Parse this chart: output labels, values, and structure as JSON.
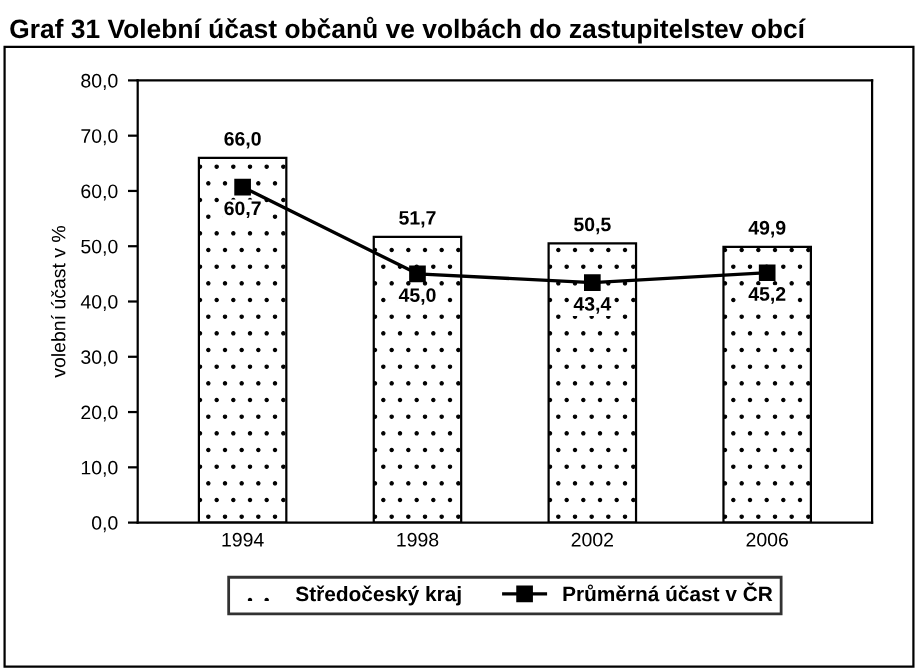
{
  "chart_data": {
    "type": "bar",
    "title": "Graf 31 Volební účast občanů ve volbách do zastupitelstev obcí",
    "ylabel": "volební účast v %",
    "categories": [
      "1994",
      "1998",
      "2002",
      "2006"
    ],
    "series": [
      {
        "name": "Středočeský kraj",
        "type": "bar",
        "color": "#ffffff",
        "values": [
          66.0,
          51.7,
          50.5,
          49.9
        ],
        "value_labels": [
          "66,0",
          "51,7",
          "50,5",
          "49,9"
        ]
      },
      {
        "name": "Průměrná účast v ČR",
        "type": "line",
        "color": "#000000",
        "marker": "square",
        "values": [
          60.7,
          45.0,
          43.4,
          45.2
        ],
        "value_labels": [
          "60,7",
          "45,0",
          "43,4",
          "45,2"
        ]
      }
    ],
    "ylim": [
      0,
      80
    ],
    "yticks": [
      {
        "value": 0,
        "label": "0,0"
      },
      {
        "value": 10,
        "label": "10,0"
      },
      {
        "value": 20,
        "label": "20,0"
      },
      {
        "value": 30,
        "label": "30,0"
      },
      {
        "value": 40,
        "label": "40,0"
      },
      {
        "value": 50,
        "label": "50,0"
      },
      {
        "value": 60,
        "label": "60,0"
      },
      {
        "value": 70,
        "label": "70,0"
      },
      {
        "value": 80,
        "label": "80,0"
      }
    ],
    "grid": false,
    "legend": "bottom"
  }
}
